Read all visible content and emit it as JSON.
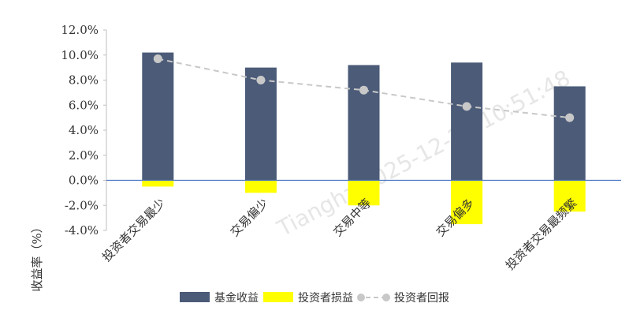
{
  "watermark": "Tianghz 2025-12-23 10:51:48",
  "chart_data": {
    "type": "bar",
    "title": "",
    "xlabel": "",
    "ylabel": "收益率（%）",
    "ylim": [
      -4.0,
      12.0
    ],
    "yticks": [
      -4.0,
      -2.0,
      0.0,
      2.0,
      4.0,
      6.0,
      8.0,
      10.0,
      12.0
    ],
    "grid": false,
    "legend_position": "bottom",
    "categories": [
      "投资者交易最少",
      "交易偏少",
      "交易中等",
      "交易偏多",
      "投资者交易最频繁"
    ],
    "series": [
      {
        "name": "基金收益",
        "kind": "bar",
        "color": "#4b5b78",
        "values": [
          10.2,
          9.0,
          9.2,
          9.4,
          7.5
        ]
      },
      {
        "name": "投资者损益",
        "kind": "bar",
        "color": "#ffff00",
        "values": [
          -0.5,
          -1.0,
          -2.0,
          -3.5,
          -2.5
        ]
      },
      {
        "name": "投资者回报",
        "kind": "line",
        "style": "dashed",
        "color": "#c8c8c8",
        "values": [
          9.7,
          8.0,
          7.2,
          5.9,
          5.0
        ]
      }
    ],
    "zero_line_color": "#4472c4"
  }
}
